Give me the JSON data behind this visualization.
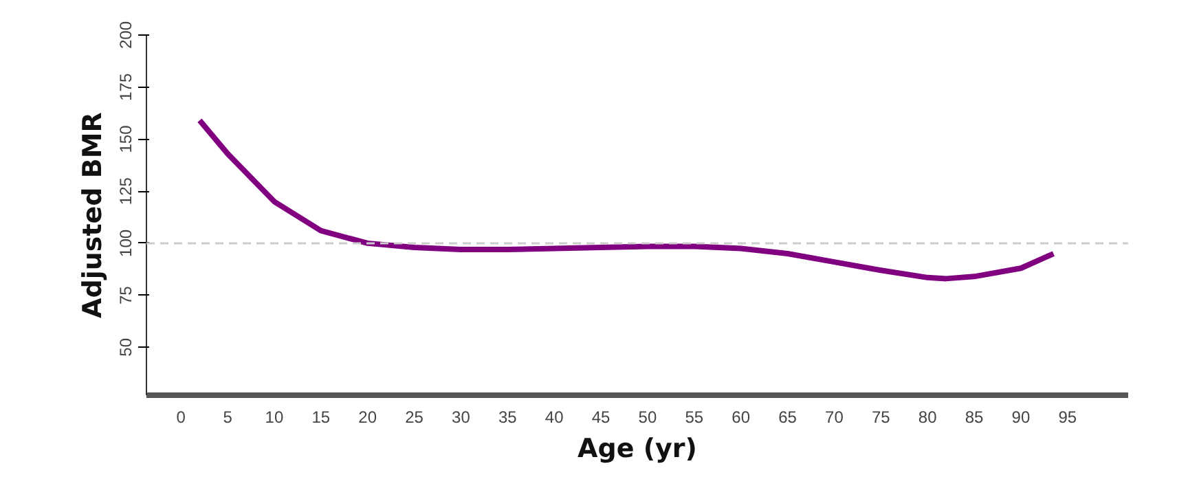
{
  "chart_data": {
    "type": "line",
    "xlabel": "Age (yr)",
    "ylabel": "Adjusted BMR",
    "x": [
      2,
      5,
      10,
      15,
      20,
      25,
      30,
      35,
      40,
      45,
      50,
      55,
      60,
      65,
      70,
      75,
      80,
      82,
      85,
      90,
      93.5
    ],
    "series": [
      {
        "color": "#800080",
        "values": [
          159,
          143,
          120,
          106,
          100,
          98,
          97,
          97,
          97.5,
          98,
          98.5,
          98.5,
          97.5,
          95,
          91,
          87,
          83.5,
          83,
          84,
          88,
          95
        ]
      }
    ],
    "xlim": [
      -3.7,
      101.5
    ],
    "ylim": [
      27,
      200
    ],
    "xticks": [
      0,
      5,
      10,
      15,
      20,
      25,
      30,
      35,
      40,
      45,
      50,
      55,
      60,
      65,
      70,
      75,
      80,
      85,
      90,
      95
    ],
    "yticks": [
      50,
      75,
      100,
      125,
      150,
      175,
      200
    ],
    "ref_lines": [
      {
        "axis": "y",
        "value": 100,
        "color": "#cccccc",
        "line_style": "dashed"
      }
    ],
    "grid": false,
    "marker": "none",
    "line_style": "solid"
  }
}
